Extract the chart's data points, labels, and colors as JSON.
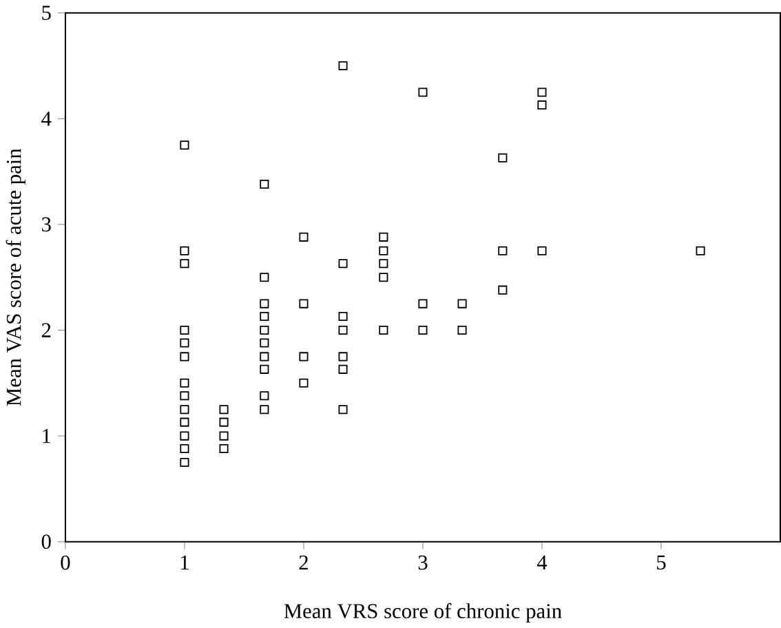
{
  "chart_data": {
    "type": "scatter",
    "xlabel": "Mean VRS score of chronic pain",
    "ylabel": "Mean VAS score of acute pain",
    "xlim": [
      0,
      6
    ],
    "xticks": [
      0,
      1,
      2,
      3,
      4,
      5
    ],
    "ylim": [
      0,
      5
    ],
    "yticks": [
      0,
      1,
      2,
      3,
      4,
      5
    ],
    "marker": "square",
    "series": [
      {
        "color": "#000000",
        "x": [
          1,
          1,
          1,
          1,
          1,
          1,
          1,
          1,
          1,
          1,
          1,
          1,
          1,
          1.33,
          1.33,
          1.33,
          1.33,
          1.67,
          1.67,
          1.67,
          1.67,
          1.67,
          1.67,
          1.67,
          1.67,
          1.67,
          1.67,
          2,
          2,
          2,
          2,
          2.33,
          2.33,
          2.33,
          2.33,
          2.33,
          2.33,
          2.33,
          2.67,
          2.67,
          2.67,
          2.67,
          2.67,
          3,
          3,
          3,
          3.33,
          3.33,
          3.67,
          3.67,
          3.67,
          4,
          4,
          4,
          5.33
        ],
        "values": [
          3.75,
          2.75,
          2.63,
          2.0,
          1.88,
          1.75,
          1.5,
          1.38,
          1.25,
          1.13,
          1.0,
          0.88,
          0.75,
          1.25,
          1.13,
          1.0,
          0.88,
          3.38,
          2.5,
          2.25,
          2.13,
          2.0,
          1.88,
          1.75,
          1.63,
          1.38,
          1.25,
          2.88,
          2.25,
          1.75,
          1.5,
          4.5,
          2.63,
          2.13,
          2.0,
          1.75,
          1.63,
          1.25,
          2.88,
          2.75,
          2.63,
          2.5,
          2.0,
          4.25,
          2.25,
          2.0,
          2.25,
          2.0,
          3.63,
          2.75,
          2.38,
          4.25,
          4.13,
          2.75,
          2.75
        ]
      }
    ]
  }
}
